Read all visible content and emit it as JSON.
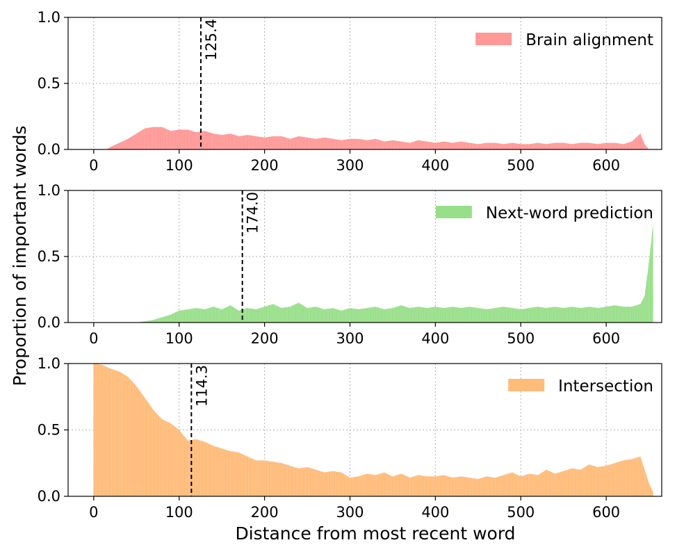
{
  "figure": {
    "ylabel": "Proportion of important words",
    "xlabel": "Distance from most recent word"
  },
  "chart_data": [
    {
      "type": "area",
      "series": [
        {
          "name": "Brain alignment",
          "color": "#ff9896",
          "x": [
            0,
            10,
            15,
            20,
            30,
            40,
            50,
            60,
            70,
            80,
            90,
            100,
            110,
            120,
            130,
            140,
            150,
            160,
            170,
            180,
            190,
            200,
            210,
            220,
            230,
            240,
            250,
            260,
            270,
            280,
            290,
            300,
            310,
            320,
            330,
            340,
            350,
            360,
            370,
            380,
            390,
            400,
            410,
            420,
            430,
            440,
            450,
            460,
            470,
            480,
            490,
            500,
            510,
            520,
            530,
            540,
            550,
            560,
            570,
            580,
            590,
            600,
            610,
            620,
            630,
            640,
            645,
            650
          ],
          "values": [
            0,
            0,
            0,
            0.02,
            0.05,
            0.08,
            0.12,
            0.16,
            0.17,
            0.17,
            0.14,
            0.15,
            0.15,
            0.13,
            0.14,
            0.12,
            0.11,
            0.12,
            0.1,
            0.11,
            0.1,
            0.09,
            0.1,
            0.1,
            0.08,
            0.1,
            0.09,
            0.08,
            0.09,
            0.08,
            0.07,
            0.08,
            0.08,
            0.07,
            0.08,
            0.06,
            0.07,
            0.06,
            0.05,
            0.07,
            0.06,
            0.05,
            0.06,
            0.05,
            0.06,
            0.05,
            0.04,
            0.05,
            0.05,
            0.04,
            0.05,
            0.04,
            0.04,
            0.05,
            0.04,
            0.05,
            0.05,
            0.04,
            0.05,
            0.05,
            0.04,
            0.05,
            0.05,
            0.04,
            0.06,
            0.12,
            0.04,
            0
          ]
        }
      ],
      "xlim": [
        -30,
        665
      ],
      "ylim": [
        0,
        1.0
      ],
      "x_ticks": [
        0,
        100,
        200,
        300,
        400,
        500,
        600
      ],
      "y_ticks": [
        0.0,
        0.5,
        1.0
      ],
      "x_tick_labels": [
        "0",
        "100",
        "200",
        "300",
        "400",
        "500",
        "600"
      ],
      "y_tick_labels": [
        "0.0",
        "0.5",
        "1.0"
      ],
      "legend_position": "top-right",
      "grid": true,
      "annotation": {
        "x": 125.4,
        "label": "125.4"
      }
    },
    {
      "type": "area",
      "series": [
        {
          "name": "Next-word prediction",
          "color": "#98df8a",
          "x": [
            0,
            40,
            50,
            60,
            70,
            80,
            90,
            100,
            110,
            120,
            130,
            140,
            150,
            160,
            170,
            180,
            190,
            200,
            210,
            220,
            230,
            240,
            250,
            260,
            270,
            280,
            290,
            300,
            310,
            320,
            330,
            340,
            350,
            360,
            370,
            380,
            390,
            400,
            410,
            420,
            430,
            440,
            450,
            460,
            470,
            480,
            490,
            500,
            510,
            520,
            530,
            540,
            550,
            560,
            570,
            580,
            590,
            600,
            610,
            620,
            630,
            640,
            645,
            650,
            655
          ],
          "values": [
            0,
            0,
            0,
            0.01,
            0.02,
            0.04,
            0.06,
            0.09,
            0.1,
            0.11,
            0.1,
            0.12,
            0.1,
            0.13,
            0.09,
            0.11,
            0.1,
            0.12,
            0.14,
            0.11,
            0.12,
            0.15,
            0.11,
            0.12,
            0.1,
            0.11,
            0.09,
            0.11,
            0.1,
            0.11,
            0.12,
            0.1,
            0.11,
            0.13,
            0.11,
            0.12,
            0.11,
            0.12,
            0.11,
            0.12,
            0.11,
            0.12,
            0.11,
            0.1,
            0.11,
            0.12,
            0.11,
            0.1,
            0.11,
            0.12,
            0.11,
            0.12,
            0.11,
            0.12,
            0.11,
            0.12,
            0.11,
            0.12,
            0.13,
            0.12,
            0.12,
            0.14,
            0.2,
            0.45,
            0.75
          ]
        }
      ],
      "xlim": [
        -30,
        665
      ],
      "ylim": [
        0,
        1.0
      ],
      "x_ticks": [
        0,
        100,
        200,
        300,
        400,
        500,
        600
      ],
      "y_ticks": [
        0.0,
        0.5,
        1.0
      ],
      "x_tick_labels": [
        "0",
        "100",
        "200",
        "300",
        "400",
        "500",
        "600"
      ],
      "y_tick_labels": [
        "0.0",
        "0.5",
        "1.0"
      ],
      "legend_position": "top-right",
      "grid": true,
      "annotation": {
        "x": 174.0,
        "label": "174.0"
      }
    },
    {
      "type": "area",
      "series": [
        {
          "name": "Intersection",
          "color": "#ffbb78",
          "x": [
            0,
            10,
            20,
            30,
            40,
            50,
            60,
            70,
            80,
            90,
            100,
            110,
            120,
            130,
            140,
            150,
            160,
            170,
            180,
            190,
            200,
            210,
            220,
            230,
            240,
            250,
            260,
            270,
            280,
            290,
            300,
            310,
            320,
            330,
            340,
            350,
            360,
            370,
            380,
            390,
            400,
            410,
            420,
            430,
            440,
            450,
            460,
            470,
            480,
            490,
            500,
            510,
            520,
            530,
            540,
            550,
            560,
            570,
            580,
            590,
            600,
            610,
            620,
            630,
            640,
            645,
            650,
            655
          ],
          "values": [
            1.0,
            0.99,
            0.96,
            0.94,
            0.9,
            0.83,
            0.74,
            0.65,
            0.58,
            0.55,
            0.5,
            0.42,
            0.43,
            0.41,
            0.38,
            0.36,
            0.34,
            0.33,
            0.3,
            0.27,
            0.27,
            0.26,
            0.25,
            0.23,
            0.21,
            0.22,
            0.2,
            0.18,
            0.19,
            0.18,
            0.14,
            0.15,
            0.17,
            0.16,
            0.18,
            0.15,
            0.17,
            0.14,
            0.16,
            0.15,
            0.15,
            0.16,
            0.14,
            0.15,
            0.14,
            0.13,
            0.15,
            0.14,
            0.16,
            0.18,
            0.15,
            0.17,
            0.16,
            0.2,
            0.17,
            0.19,
            0.21,
            0.2,
            0.24,
            0.22,
            0.23,
            0.25,
            0.27,
            0.28,
            0.3,
            0.2,
            0.1,
            0.03
          ]
        }
      ],
      "xlim": [
        -30,
        665
      ],
      "ylim": [
        0,
        1.0
      ],
      "x_ticks": [
        0,
        100,
        200,
        300,
        400,
        500,
        600
      ],
      "y_ticks": [
        0.0,
        0.5,
        1.0
      ],
      "x_tick_labels": [
        "0",
        "100",
        "200",
        "300",
        "400",
        "500",
        "600"
      ],
      "y_tick_labels": [
        "0.0",
        "0.5",
        "1.0"
      ],
      "legend_position": "top-right",
      "grid": true,
      "annotation": {
        "x": 114.3,
        "label": "114.3"
      }
    }
  ]
}
